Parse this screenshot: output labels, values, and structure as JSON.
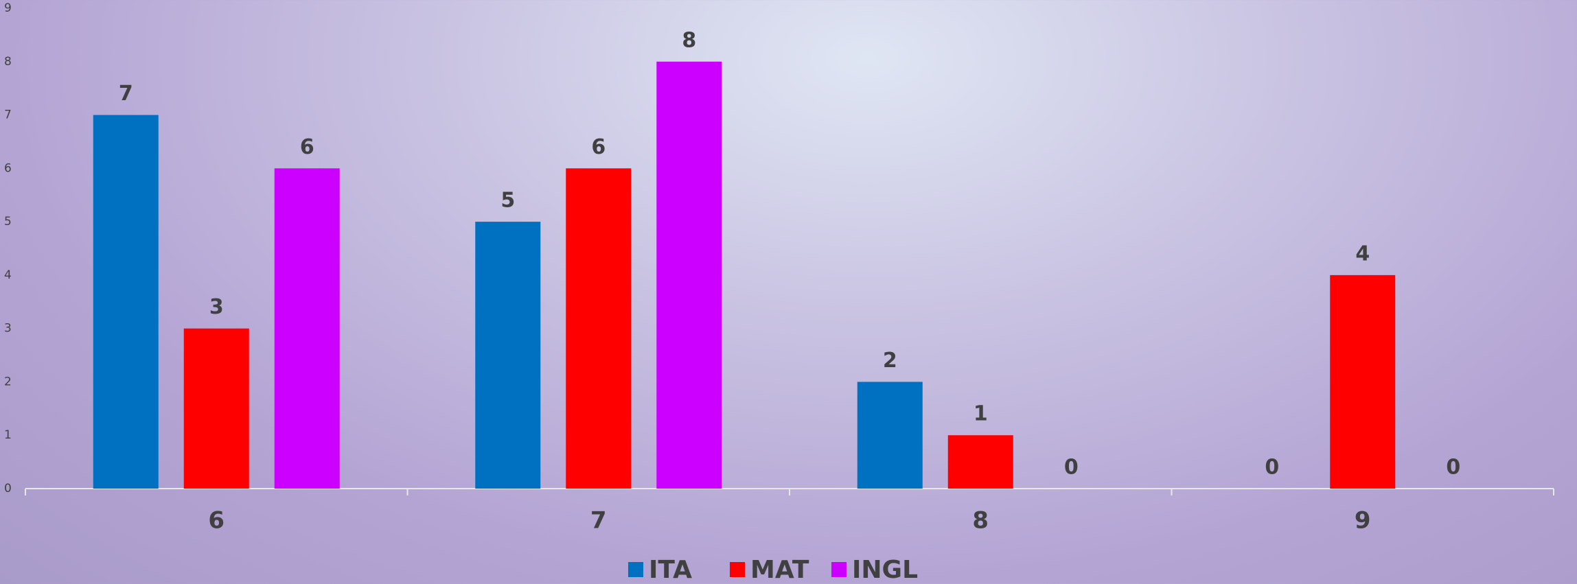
{
  "chart_data": {
    "type": "bar",
    "categories": [
      "6",
      "7",
      "8",
      "9"
    ],
    "series": [
      {
        "name": "ITA",
        "color": "#0070c0",
        "values": [
          7,
          5,
          2,
          0
        ]
      },
      {
        "name": "MAT",
        "color": "#ff0000",
        "values": [
          3,
          6,
          1,
          4
        ]
      },
      {
        "name": "INGL",
        "color": "#cc00ff",
        "values": [
          6,
          8,
          0,
          0
        ]
      }
    ],
    "ylim": [
      0,
      9
    ],
    "yticks": [
      0,
      1,
      2,
      3,
      4,
      5,
      6,
      7,
      8,
      9
    ],
    "data_labels": true,
    "legend": "bottom"
  }
}
